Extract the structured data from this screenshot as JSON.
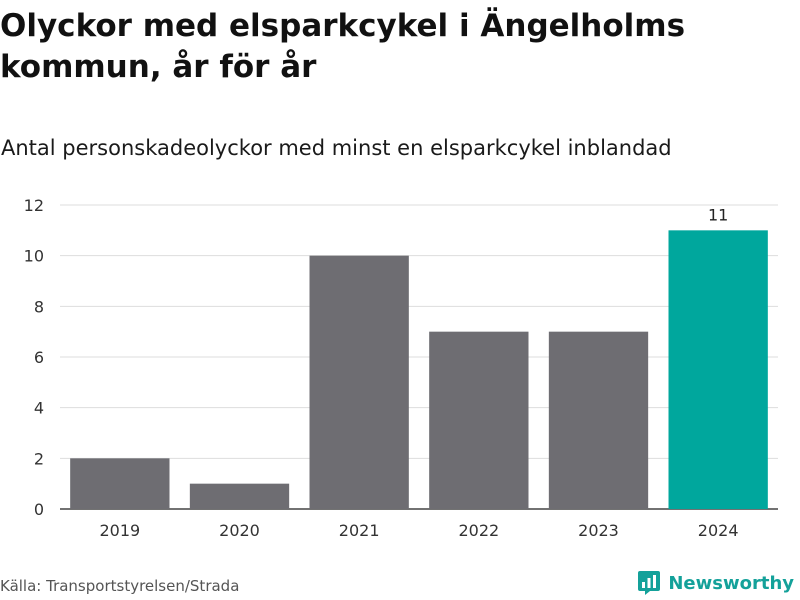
{
  "header": {
    "title": "Olyckor med elsparkcykel i Ängelholms kommun, år för år",
    "subtitle": "Antal personskadeolyckor med minst en elsparkcykel inblandad"
  },
  "footer": {
    "source": "Källa: Transportstyrelsen/Strada",
    "brand": "Newsworthy",
    "brand_icon": "newsworthy-logo-icon",
    "brand_color": "#14a19a"
  },
  "chart_data": {
    "type": "bar",
    "title": "",
    "xlabel": "",
    "ylabel": "",
    "categories": [
      "2019",
      "2020",
      "2021",
      "2022",
      "2023",
      "2024"
    ],
    "values": [
      2,
      1,
      10,
      7,
      7,
      11
    ],
    "ylim": [
      0,
      12
    ],
    "yticks": [
      0,
      2,
      4,
      6,
      8,
      10,
      12
    ],
    "grid": true,
    "bar_color": "#6e6d72",
    "highlight_color": "#00a79d",
    "highlight_index": 5,
    "data_labels": [
      {
        "category": "2024",
        "value": 11,
        "text": "11"
      }
    ]
  }
}
